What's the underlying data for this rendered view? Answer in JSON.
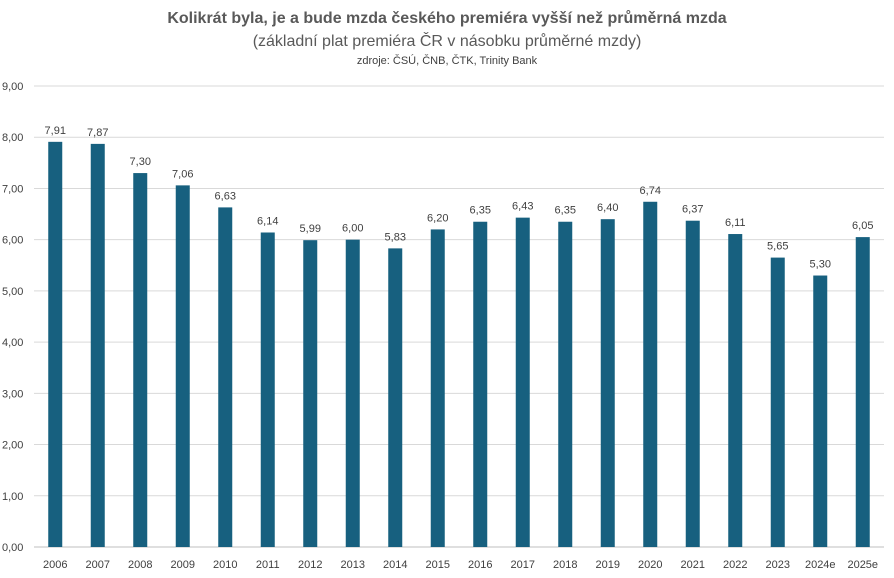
{
  "chart_data": {
    "type": "bar",
    "title": "Kolikrát byla, je a bude mzda českého premiéra vyšší než průměrná mzda",
    "subtitle": "(základní plat premiéra ČR v násobku průměrné mzdy)",
    "source": "zdroje: ČSÚ, ČNB, ČTK, Trinity Bank",
    "categories": [
      "2006",
      "2007",
      "2008",
      "2009",
      "2010",
      "2011",
      "2012",
      "2013",
      "2014",
      "2015",
      "2016",
      "2017",
      "2018",
      "2019",
      "2020",
      "2021",
      "2022",
      "2023",
      "2024e",
      "2025e"
    ],
    "values": [
      7.91,
      7.87,
      7.3,
      7.06,
      6.63,
      6.14,
      5.99,
      6.0,
      5.83,
      6.2,
      6.35,
      6.43,
      6.35,
      6.4,
      6.74,
      6.37,
      6.11,
      5.65,
      5.3,
      6.05
    ],
    "value_labels": [
      "7,91",
      "7,87",
      "7,30",
      "7,06",
      "6,63",
      "6,14",
      "5,99",
      "6,00",
      "5,83",
      "6,20",
      "6,35",
      "6,43",
      "6,35",
      "6,40",
      "6,74",
      "6,37",
      "6,11",
      "5,65",
      "5,30",
      "6,05"
    ],
    "y_ticks": [
      "0,00",
      "1,00",
      "2,00",
      "3,00",
      "4,00",
      "5,00",
      "6,00",
      "7,00",
      "8,00",
      "9,00"
    ],
    "ylim": [
      0,
      9
    ],
    "grid": true,
    "bar_color": "#17607f",
    "grid_color": "#d9d9d9"
  }
}
